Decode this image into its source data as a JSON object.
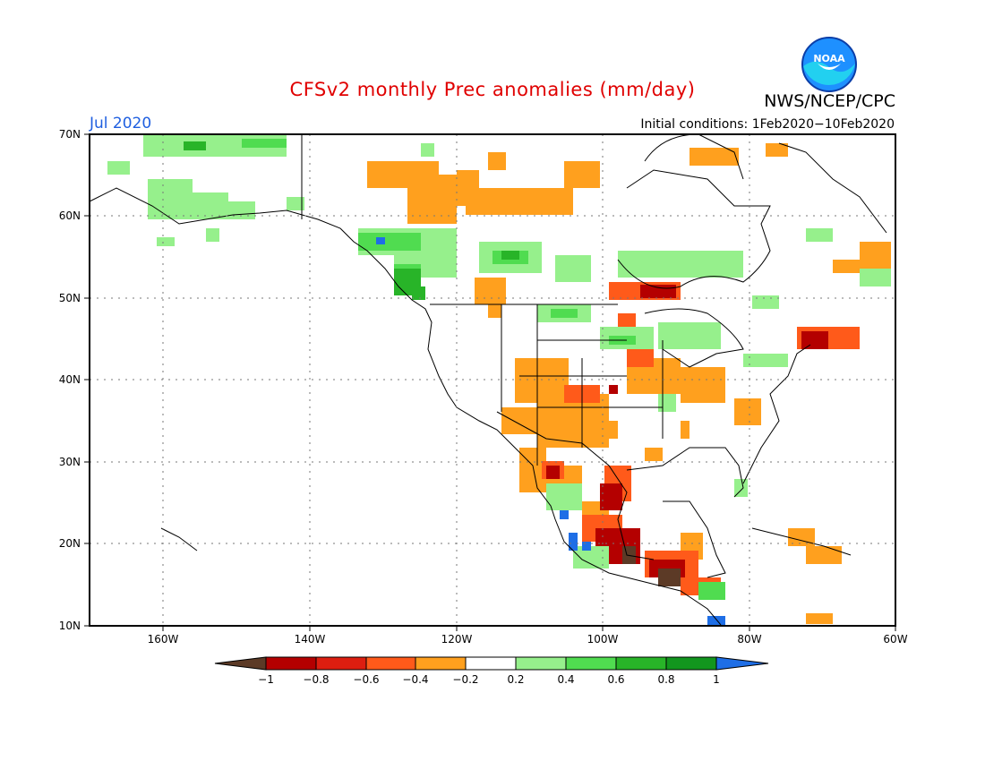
{
  "title": "CFSv2 monthly Prec anomalies (mm/day)",
  "agency": "NWS/NCEP/CPC",
  "logo_text": "NOAA",
  "valid_month": "Jul 2020",
  "initial_conditions": "Initial conditions: 1Feb2020−10Feb2020",
  "lat_labels": [
    "70N",
    "60N",
    "50N",
    "40N",
    "30N",
    "20N",
    "10N"
  ],
  "lon_labels": [
    "160W",
    "140W",
    "120W",
    "100W",
    "80W",
    "60W"
  ],
  "colorbar": {
    "labels": [
      "−1",
      "−0.8",
      "−0.6",
      "−0.4",
      "−0.2",
      "0.2",
      "0.4",
      "0.6",
      "0.8",
      "1"
    ],
    "colors": [
      "#5c3a26",
      "#b40000",
      "#dd1e10",
      "#ff5a1a",
      "#ffa01e",
      "#ffffff",
      "#96f08c",
      "#50dc50",
      "#28b428",
      "#12961e",
      "#1e6ee6"
    ]
  }
}
